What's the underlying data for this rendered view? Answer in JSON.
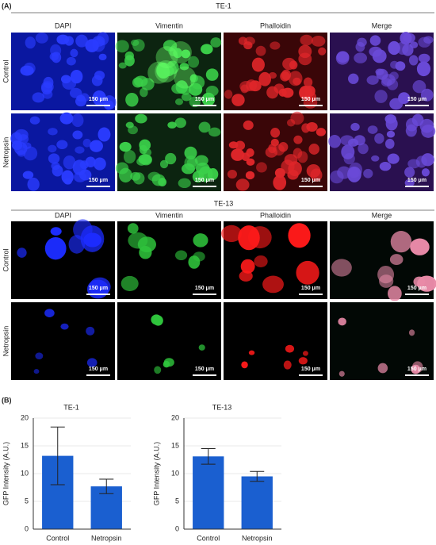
{
  "panel_a_label": "(A)",
  "panel_b_label": "(B)",
  "grids": [
    {
      "title": "TE-1",
      "columns": [
        "DAPI",
        "Vimentin",
        "Phalloidin",
        "Merge"
      ],
      "rows": [
        "Control",
        "Netropsin"
      ],
      "scale_bar": "150 μm"
    },
    {
      "title": "TE-13",
      "columns": [
        "DAPI",
        "Vimentin",
        "Phalloidin",
        "Merge"
      ],
      "rows": [
        "Control",
        "Netropsin"
      ],
      "scale_bar": "150 μm"
    }
  ],
  "chart_data": [
    {
      "type": "bar",
      "title": "TE-1",
      "y_label": "GFP Intensity (A.U.)",
      "categories": [
        "Control",
        "Netropsin"
      ],
      "values": [
        13.2,
        7.7
      ],
      "errors": [
        5.2,
        1.3
      ],
      "color": "#1a5fd0",
      "ylim": [
        0,
        20
      ],
      "yticks": [
        0,
        5,
        10,
        15,
        20
      ],
      "grid": true
    },
    {
      "type": "bar",
      "title": "TE-13",
      "y_label": "GFP Intensity (A.U.)",
      "categories": [
        "Control",
        "Netropsin"
      ],
      "values": [
        13.1,
        9.5
      ],
      "errors": [
        1.4,
        0.9
      ],
      "color": "#1a5fd0",
      "ylim": [
        0,
        20
      ],
      "yticks": [
        0,
        5,
        10,
        15,
        20
      ],
      "grid": true
    }
  ]
}
